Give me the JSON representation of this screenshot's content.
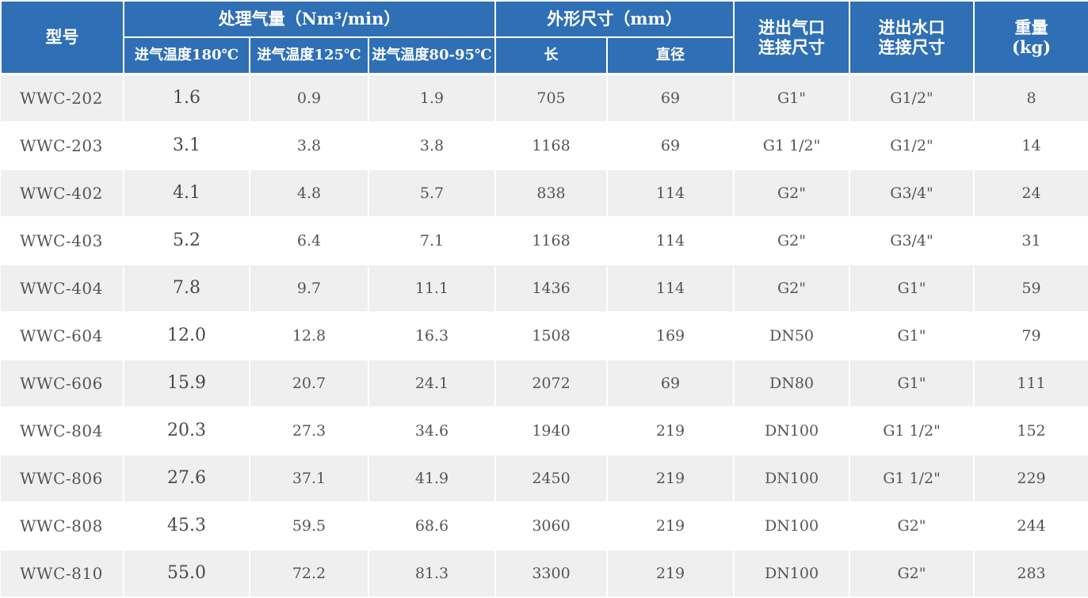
{
  "header": {
    "model": "型号",
    "flow_group": "处理气量（Nm³/min）",
    "flow_180": "进气温度180℃",
    "flow_125": "进气温度125℃",
    "flow_80_95": "进气温度80-95℃",
    "dim_group": "外形尺寸（mm）",
    "length": "长",
    "diameter": "直径",
    "air_conn_line1": "进出气口",
    "air_conn_line2": "连接尺寸",
    "water_conn_line1": "进出水口",
    "water_conn_line2": "连接尺寸",
    "weight_line1": "重量",
    "weight_line2": "(kg)"
  },
  "colors": {
    "header_bg": "#2f6fb5",
    "header_text": "#ffffff",
    "row_shaded": "#efefef",
    "row_plain": "#ffffff",
    "cell_text": "#555555"
  },
  "rows": [
    {
      "model": "WWC-202",
      "flow_180": "1.6",
      "flow_125": "0.9",
      "flow_80_95": "1.9",
      "length": "705",
      "diameter": "69",
      "air_conn": "G1\"",
      "water_conn": "G1/2\"",
      "weight": "8"
    },
    {
      "model": "WWC-203",
      "flow_180": "3.1",
      "flow_125": "3.8",
      "flow_80_95": "3.8",
      "length": "1168",
      "diameter": "69",
      "air_conn": "G1 1/2\"",
      "water_conn": "G1/2\"",
      "weight": "14"
    },
    {
      "model": "WWC-402",
      "flow_180": "4.1",
      "flow_125": "4.8",
      "flow_80_95": "5.7",
      "length": "838",
      "diameter": "114",
      "air_conn": "G2\"",
      "water_conn": "G3/4\"",
      "weight": "24"
    },
    {
      "model": "WWC-403",
      "flow_180": "5.2",
      "flow_125": "6.4",
      "flow_80_95": "7.1",
      "length": "1168",
      "diameter": "114",
      "air_conn": "G2\"",
      "water_conn": "G3/4\"",
      "weight": "31"
    },
    {
      "model": "WWC-404",
      "flow_180": "7.8",
      "flow_125": "9.7",
      "flow_80_95": "11.1",
      "length": "1436",
      "diameter": "114",
      "air_conn": "G2\"",
      "water_conn": "G1\"",
      "weight": "59"
    },
    {
      "model": "WWC-604",
      "flow_180": "12.0",
      "flow_125": "12.8",
      "flow_80_95": "16.3",
      "length": "1508",
      "diameter": "169",
      "air_conn": "DN50",
      "water_conn": "G1\"",
      "weight": "79"
    },
    {
      "model": "WWC-606",
      "flow_180": "15.9",
      "flow_125": "20.7",
      "flow_80_95": "24.1",
      "length": "2072",
      "diameter": "69",
      "air_conn": "DN80",
      "water_conn": "G1\"",
      "weight": "111"
    },
    {
      "model": "WWC-804",
      "flow_180": "20.3",
      "flow_125": "27.3",
      "flow_80_95": "34.6",
      "length": "1940",
      "diameter": "219",
      "air_conn": "DN100",
      "water_conn": "G1 1/2\"",
      "weight": "152"
    },
    {
      "model": "WWC-806",
      "flow_180": "27.6",
      "flow_125": "37.1",
      "flow_80_95": "41.9",
      "length": "2450",
      "diameter": "219",
      "air_conn": "DN100",
      "water_conn": "G1 1/2\"",
      "weight": "229"
    },
    {
      "model": "WWC-808",
      "flow_180": "45.3",
      "flow_125": "59.5",
      "flow_80_95": "68.6",
      "length": "3060",
      "diameter": "219",
      "air_conn": "DN100",
      "water_conn": "G2\"",
      "weight": "244"
    },
    {
      "model": "WWC-810",
      "flow_180": "55.0",
      "flow_125": "72.2",
      "flow_80_95": "81.3",
      "length": "3300",
      "diameter": "219",
      "air_conn": "DN100",
      "water_conn": "G2\"",
      "weight": "283"
    }
  ]
}
